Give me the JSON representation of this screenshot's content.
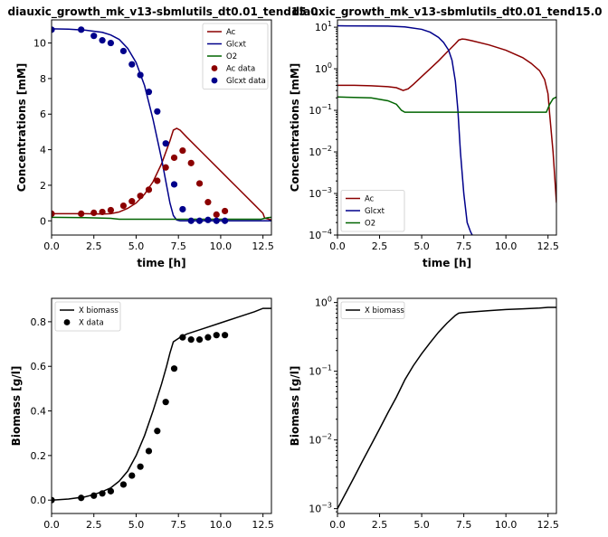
{
  "chart_data": [
    {
      "id": "p1",
      "type": "line",
      "title": "diauxic_growth_mk_v13-sbmlutils_dt0.01_tend15.0",
      "xlabel": "time [h]",
      "ylabel": "Concentrations [mM]",
      "xscale": "linear",
      "yscale": "linear",
      "xlim": [
        0,
        13
      ],
      "ylim": [
        -0.8,
        11.3
      ],
      "xticks": [
        0,
        2.5,
        5,
        7.5,
        10,
        12.5
      ],
      "xtick_labels": [
        "0.0",
        "2.5",
        "5.0",
        "7.5",
        "10.0",
        "12.5"
      ],
      "yticks": [
        0,
        2,
        4,
        6,
        8,
        10
      ],
      "ytick_labels": [
        "0",
        "2",
        "4",
        "6",
        "8",
        "10"
      ],
      "legend_position": "top-right",
      "lines": [
        {
          "name": "Ac",
          "color": "#8b0000",
          "x": [
            0,
            1,
            2,
            3,
            3.5,
            4,
            4.5,
            5,
            5.5,
            6,
            6.5,
            7,
            7.2,
            7.4,
            7.6,
            8,
            9,
            10,
            11,
            12,
            12.5,
            12.6,
            13
          ],
          "y": [
            0.4,
            0.4,
            0.4,
            0.38,
            0.4,
            0.5,
            0.7,
            1.0,
            1.5,
            2.2,
            3.2,
            4.5,
            5.1,
            5.2,
            5.1,
            4.7,
            3.75,
            2.8,
            1.85,
            0.9,
            0.42,
            0.15,
            0.05
          ]
        },
        {
          "name": "Glcxt",
          "color": "#00008b",
          "x": [
            0,
            1,
            2,
            3,
            3.5,
            4,
            4.5,
            5,
            5.5,
            6,
            6.5,
            6.8,
            7,
            7.2,
            7.4,
            7.6,
            8,
            10,
            13
          ],
          "y": [
            10.8,
            10.78,
            10.72,
            10.6,
            10.45,
            10.2,
            9.7,
            8.9,
            7.6,
            5.7,
            3.5,
            2.0,
            1.0,
            0.3,
            0.05,
            0.0,
            0.0,
            0.0,
            0.0
          ]
        },
        {
          "name": "O2",
          "color": "#006400",
          "x": [
            0,
            2,
            3.5,
            4,
            5,
            8,
            12.4,
            12.6,
            12.8,
            13
          ],
          "y": [
            0.2,
            0.18,
            0.14,
            0.09,
            0.09,
            0.09,
            0.09,
            0.14,
            0.18,
            0.2
          ]
        }
      ],
      "scatters": [
        {
          "name": "Ac data",
          "color": "#8b0000",
          "x": [
            0,
            1.75,
            2.5,
            3.0,
            3.5,
            4.25,
            4.75,
            5.25,
            5.75,
            6.25,
            6.75,
            7.25,
            7.75,
            8.25,
            8.75,
            9.25,
            9.75,
            10.25
          ],
          "y": [
            0.4,
            0.4,
            0.45,
            0.5,
            0.6,
            0.85,
            1.1,
            1.4,
            1.75,
            2.25,
            3.0,
            3.55,
            3.95,
            3.25,
            2.1,
            1.05,
            0.35,
            0.55
          ]
        },
        {
          "name": "Glcxt data",
          "color": "#00008b",
          "x": [
            0,
            1.75,
            2.5,
            3.0,
            3.5,
            4.25,
            4.75,
            5.25,
            5.75,
            6.25,
            6.75,
            7.25,
            7.75,
            8.25,
            8.75,
            9.25,
            9.75,
            10.25
          ],
          "y": [
            10.75,
            10.75,
            10.4,
            10.15,
            10.0,
            9.55,
            8.8,
            8.2,
            7.25,
            6.15,
            4.35,
            2.05,
            0.65,
            0.0,
            0.0,
            0.05,
            0.0,
            0.0
          ]
        }
      ]
    },
    {
      "id": "p2",
      "type": "line",
      "title": "diauxic_growth_mk_v13-sbmlutils_dt0.01_tend15.0",
      "xlabel": "time [h]",
      "ylabel": "Concentrations [mM]",
      "xscale": "linear",
      "yscale": "log",
      "xlim": [
        0,
        13
      ],
      "ylim": [
        0.0001,
        15
      ],
      "xticks": [
        0,
        2.5,
        5,
        7.5,
        10,
        12.5
      ],
      "xtick_labels": [
        "0.0",
        "2.5",
        "5.0",
        "7.5",
        "10.0",
        "12.5"
      ],
      "yticks": [
        0.0001,
        0.001,
        0.01,
        0.1,
        1,
        10
      ],
      "ytick_labels_exp": [
        "−4",
        "−3",
        "−2",
        "−1",
        "0",
        "1"
      ],
      "ytick_base": "10",
      "legend_position": "bottom-left",
      "lines": [
        {
          "name": "Ac",
          "color": "#8b0000",
          "x": [
            0,
            1,
            2,
            3,
            3.5,
            3.9,
            4.2,
            4.5,
            5,
            5.5,
            6,
            6.5,
            7,
            7.2,
            7.4,
            7.6,
            8,
            9,
            10,
            11,
            11.5,
            12,
            12.3,
            12.5,
            12.6,
            12.8,
            13
          ],
          "y": [
            0.4,
            0.4,
            0.39,
            0.37,
            0.35,
            0.3,
            0.33,
            0.42,
            0.65,
            1.0,
            1.55,
            2.5,
            4.0,
            4.9,
            5.2,
            5.1,
            4.7,
            3.75,
            2.8,
            1.85,
            1.35,
            0.9,
            0.55,
            0.25,
            0.08,
            0.01,
            0.0006
          ]
        },
        {
          "name": "Glcxt",
          "color": "#00008b",
          "x": [
            0,
            2,
            3,
            4,
            5,
            5.5,
            6,
            6.3,
            6.6,
            6.8,
            7.0,
            7.15,
            7.3,
            7.5,
            7.7,
            7.9,
            8.0
          ],
          "y": [
            10.8,
            10.7,
            10.6,
            10.2,
            8.9,
            7.6,
            5.7,
            4.3,
            2.8,
            1.6,
            0.5,
            0.1,
            0.01,
            0.001,
            0.0002,
            0.00012,
            0.0001
          ]
        },
        {
          "name": "O2",
          "color": "#006400",
          "x": [
            0,
            2,
            3,
            3.5,
            3.8,
            4.0,
            5,
            8,
            12.4,
            12.6,
            12.8,
            13
          ],
          "y": [
            0.21,
            0.2,
            0.17,
            0.14,
            0.1,
            0.09,
            0.09,
            0.09,
            0.09,
            0.14,
            0.19,
            0.21
          ]
        }
      ],
      "scatters": []
    },
    {
      "id": "p3",
      "type": "line",
      "title": "",
      "xlabel": "",
      "ylabel": "Biomass [g/l]",
      "xscale": "linear",
      "yscale": "linear",
      "xlim": [
        0,
        13
      ],
      "ylim": [
        -0.06,
        0.905
      ],
      "xticks": [
        0,
        2.5,
        5,
        7.5,
        10,
        12.5
      ],
      "xtick_labels": [
        "0.0",
        "2.5",
        "5.0",
        "7.5",
        "10.0",
        "12.5"
      ],
      "yticks": [
        0,
        0.2,
        0.4,
        0.6,
        0.8
      ],
      "ytick_labels": [
        "0.0",
        "0.2",
        "0.4",
        "0.6",
        "0.8"
      ],
      "legend_position": "top-left",
      "lines": [
        {
          "name": "X biomass",
          "color": "#000000",
          "x": [
            0,
            1,
            2,
            2.5,
            3,
            3.5,
            4,
            4.5,
            5,
            5.5,
            6,
            6.5,
            6.8,
            7.0,
            7.2,
            7.4,
            7.6,
            8,
            9,
            10,
            11,
            12,
            12.5,
            13
          ],
          "y": [
            0.0,
            0.005,
            0.015,
            0.025,
            0.038,
            0.055,
            0.085,
            0.13,
            0.2,
            0.29,
            0.4,
            0.52,
            0.6,
            0.66,
            0.71,
            0.72,
            0.73,
            0.745,
            0.77,
            0.795,
            0.82,
            0.845,
            0.86,
            0.86
          ]
        }
      ],
      "scatters": [
        {
          "name": "X data",
          "color": "#000000",
          "x": [
            0,
            1.75,
            2.5,
            3.0,
            3.5,
            4.25,
            4.75,
            5.25,
            5.75,
            6.25,
            6.75,
            7.25,
            7.75,
            8.25,
            8.75,
            9.25,
            9.75,
            10.25
          ],
          "y": [
            0.0,
            0.01,
            0.02,
            0.03,
            0.04,
            0.07,
            0.11,
            0.15,
            0.22,
            0.31,
            0.44,
            0.59,
            0.73,
            0.72,
            0.72,
            0.73,
            0.74,
            0.74
          ]
        }
      ]
    },
    {
      "id": "p4",
      "type": "line",
      "title": "",
      "xlabel": "",
      "ylabel": "Biomass [g/l]",
      "xscale": "linear",
      "yscale": "log",
      "xlim": [
        0,
        13
      ],
      "ylim": [
        0.00085,
        1.15
      ],
      "xticks": [
        0,
        2.5,
        5,
        7.5,
        10,
        12.5
      ],
      "xtick_labels": [
        "0.0",
        "2.5",
        "5.0",
        "7.5",
        "10.0",
        "12.5"
      ],
      "yticks": [
        0.001,
        0.01,
        0.1,
        1
      ],
      "ytick_labels_exp": [
        "−3",
        "−2",
        "−1",
        "0"
      ],
      "ytick_base": "10",
      "legend_position": "top-left",
      "lines": [
        {
          "name": "X biomass",
          "color": "#000000",
          "x": [
            0,
            0.5,
            1,
            1.5,
            2,
            2.5,
            3,
            3.5,
            4,
            4.5,
            5,
            5.5,
            6,
            6.5,
            7,
            7.2,
            7.4,
            8,
            9,
            10,
            11,
            12,
            12.5,
            13
          ],
          "y": [
            0.001,
            0.0017,
            0.0029,
            0.005,
            0.0085,
            0.0145,
            0.025,
            0.042,
            0.075,
            0.12,
            0.18,
            0.26,
            0.37,
            0.5,
            0.65,
            0.7,
            0.71,
            0.73,
            0.76,
            0.79,
            0.81,
            0.83,
            0.85,
            0.85
          ]
        }
      ],
      "scatters": []
    }
  ]
}
